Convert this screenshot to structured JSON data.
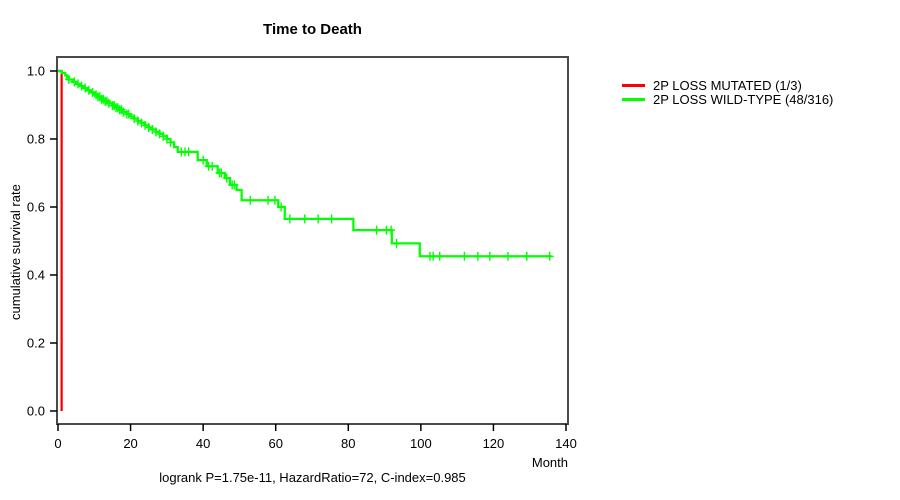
{
  "chart_data": {
    "type": "line",
    "subtype": "kaplan-meier-step-survival",
    "title": "Time to Death",
    "xlabel": "Month",
    "ylabel": "cumulative survival rate",
    "footer": "logrank P=1.75e-11, HazardRatio=72, C-index=0.985",
    "xlim": [
      0,
      140
    ],
    "ylim": [
      0.0,
      1.0
    ],
    "xticks": [
      0,
      20,
      40,
      60,
      80,
      100,
      120,
      140
    ],
    "ytick_labels": [
      "0.0",
      "0.2",
      "0.4",
      "0.6",
      "0.8",
      "1.0"
    ],
    "grid": false,
    "legend_position": "right-outside",
    "frame_color": "#4a4a4a",
    "axis_color": "#000000",
    "background_color": "#ffffff",
    "censor_marker": "plus",
    "series": [
      {
        "name": "2P LOSS MUTATED (1/3)",
        "color": "#ff0000",
        "steps": [
          [
            0,
            1.0
          ],
          [
            1,
            1.0
          ],
          [
            1,
            0.0
          ]
        ],
        "end_time": 1,
        "censors": []
      },
      {
        "name": "2P LOSS WILD-TYPE (48/316)",
        "color": "#00ff00",
        "steps": [
          [
            0,
            1.0
          ],
          [
            1,
            0.994
          ],
          [
            2,
            0.987
          ],
          [
            2.5,
            0.981
          ],
          [
            3,
            0.975
          ],
          [
            4,
            0.968
          ],
          [
            5,
            0.962
          ],
          [
            6,
            0.956
          ],
          [
            7,
            0.95
          ],
          [
            8,
            0.943
          ],
          [
            9,
            0.937
          ],
          [
            10,
            0.93
          ],
          [
            11,
            0.924
          ],
          [
            12,
            0.917
          ],
          [
            13,
            0.911
          ],
          [
            14,
            0.905
          ],
          [
            15,
            0.898
          ],
          [
            16,
            0.892
          ],
          [
            17,
            0.886
          ],
          [
            18,
            0.879
          ],
          [
            19,
            0.873
          ],
          [
            20,
            0.866
          ],
          [
            21,
            0.86
          ],
          [
            22,
            0.853
          ],
          [
            23,
            0.847
          ],
          [
            24,
            0.84
          ],
          [
            25,
            0.834
          ],
          [
            26,
            0.828
          ],
          [
            27,
            0.821
          ],
          [
            28,
            0.815
          ],
          [
            29,
            0.808
          ],
          [
            30,
            0.8
          ],
          [
            31,
            0.79
          ],
          [
            32,
            0.776
          ],
          [
            33,
            0.762
          ],
          [
            38.5,
            0.738
          ],
          [
            41,
            0.72
          ],
          [
            44,
            0.7
          ],
          [
            46,
            0.685
          ],
          [
            47.4,
            0.665
          ],
          [
            49.2,
            0.65
          ],
          [
            50.6,
            0.62
          ],
          [
            60.7,
            0.6
          ],
          [
            62.5,
            0.565
          ],
          [
            81.4,
            0.532
          ],
          [
            92,
            0.493
          ],
          [
            99.7,
            0.455
          ]
        ],
        "end_time": 136,
        "censors": [
          [
            3,
            0.975
          ],
          [
            4.5,
            0.968
          ],
          [
            5.5,
            0.962
          ],
          [
            6.5,
            0.956
          ],
          [
            7.5,
            0.95
          ],
          [
            8.5,
            0.943
          ],
          [
            9.5,
            0.937
          ],
          [
            10.5,
            0.93
          ],
          [
            11,
            0.924
          ],
          [
            11.5,
            0.924
          ],
          [
            12,
            0.917
          ],
          [
            12.5,
            0.917
          ],
          [
            13,
            0.911
          ],
          [
            13.5,
            0.911
          ],
          [
            14,
            0.905
          ],
          [
            15,
            0.898
          ],
          [
            15.5,
            0.898
          ],
          [
            16,
            0.892
          ],
          [
            16.5,
            0.892
          ],
          [
            17,
            0.886
          ],
          [
            17.5,
            0.886
          ],
          [
            18,
            0.879
          ],
          [
            19,
            0.873
          ],
          [
            19.5,
            0.873
          ],
          [
            21,
            0.86
          ],
          [
            22,
            0.853
          ],
          [
            23,
            0.847
          ],
          [
            24,
            0.84
          ],
          [
            25,
            0.834
          ],
          [
            26,
            0.828
          ],
          [
            27,
            0.821
          ],
          [
            28,
            0.815
          ],
          [
            29,
            0.808
          ],
          [
            30,
            0.8
          ],
          [
            31,
            0.79
          ],
          [
            34,
            0.762
          ],
          [
            35,
            0.762
          ],
          [
            36,
            0.762
          ],
          [
            40,
            0.738
          ],
          [
            41.5,
            0.72
          ],
          [
            42.5,
            0.72
          ],
          [
            44.5,
            0.7
          ],
          [
            45,
            0.7
          ],
          [
            46.5,
            0.685
          ],
          [
            48,
            0.665
          ],
          [
            48.6,
            0.665
          ],
          [
            53,
            0.62
          ],
          [
            57.9,
            0.62
          ],
          [
            59.8,
            0.62
          ],
          [
            61.5,
            0.6
          ],
          [
            63.9,
            0.565
          ],
          [
            68,
            0.565
          ],
          [
            71.7,
            0.565
          ],
          [
            75.4,
            0.565
          ],
          [
            87.8,
            0.532
          ],
          [
            90.5,
            0.532
          ],
          [
            91.8,
            0.532
          ],
          [
            93.3,
            0.493
          ],
          [
            102.5,
            0.455
          ],
          [
            103.4,
            0.455
          ],
          [
            105.2,
            0.455
          ],
          [
            112,
            0.455
          ],
          [
            115.7,
            0.455
          ],
          [
            119,
            0.455
          ],
          [
            124,
            0.455
          ],
          [
            129.2,
            0.455
          ],
          [
            135.5,
            0.455
          ]
        ]
      }
    ]
  }
}
